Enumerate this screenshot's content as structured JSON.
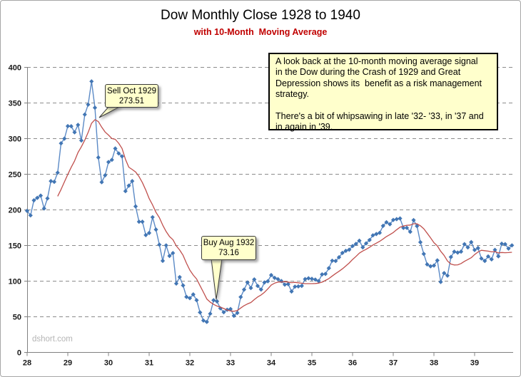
{
  "header": {
    "title": "Dow Monthly Close 1928 to 1940",
    "subtitle": "with 10-Month  Moving Average"
  },
  "watermark": "dshort.com",
  "annotations": {
    "sell_callout": {
      "line1": "Sell Oct 1929",
      "line2": "273.51",
      "anchor": "Oct 1929",
      "anchor_value": 273.51
    },
    "buy_callout": {
      "line1": "Buy Aug 1932",
      "line2": "73.16",
      "anchor": "Aug 1932",
      "anchor_value": 73.16
    },
    "note_box": {
      "text": "A look back at the 10-month moving average signal\nin the Dow during the Crash of 1929 and Great\nDepression shows its  benefit as a risk management\nstrategy.\n\nThere's a bit of whipsawing in late '32- '33, in '37 and\nin again in '39."
    }
  },
  "chart_data": {
    "type": "line",
    "title": "Dow Monthly Close 1928 to 1940",
    "subtitle": "with 10-Month Moving Average",
    "x_unit": "month",
    "x_start": "Jan 1928",
    "x_end": "Dec 1939",
    "x_tick_labels": [
      "28",
      "29",
      "30",
      "31",
      "32",
      "33",
      "34",
      "35",
      "36",
      "37",
      "38",
      "39"
    ],
    "y_ticks": [
      0,
      50,
      100,
      150,
      200,
      250,
      300,
      350,
      400
    ],
    "ylim": [
      0,
      400
    ],
    "grid": "horizontal-dashed",
    "legend": "none",
    "colors": {
      "close_line": "#5b8ac6",
      "close_marker": "#4276b4",
      "ma_line": "#c0504d",
      "subtitle_red": "#c00000",
      "callout_fill": "#ffffcc",
      "grid_gray": "#8c8c8c"
    },
    "series": [
      {
        "name": "Dow Monthly Close",
        "style": "line-with-diamond-markers",
        "color": "#4f81bd",
        "values": [
          198.6,
          192.33,
          213.35,
          216.93,
          219.99,
          201.96,
          216.13,
          240.41,
          239.43,
          252.16,
          293.38,
          300.0,
          317.51,
          317.41,
          308.85,
          319.29,
          297.41,
          333.79,
          347.7,
          380.33,
          343.45,
          273.51,
          238.95,
          248.48,
          267.14,
          270.23,
          286.1,
          279.23,
          275.07,
          226.34,
          233.99,
          240.42,
          204.9,
          183.35,
          183.39,
          164.58,
          167.55,
          189.66,
          172.36,
          151.19,
          128.46,
          150.18,
          135.39,
          139.41,
          96.61,
          105.66,
          93.99,
          77.9,
          76.11,
          81.44,
          73.28,
          56.11,
          44.74,
          42.84,
          54.26,
          73.16,
          71.56,
          61.9,
          56.35,
          59.93,
          60.9,
          51.39,
          55.4,
          77.66,
          88.11,
          98.14,
          90.39,
          102.41,
          93.26,
          88.16,
          98.14,
          99.9,
          108.54,
          104.62,
          102.8,
          100.08,
          95.15,
          95.94,
          85.51,
          92.26,
          92.64,
          93.36,
          102.94,
          104.04,
          103.27,
          102.16,
          100.11,
          109.54,
          110.1,
          118.21,
          128.7,
          128.29,
          133.49,
          139.59,
          142.51,
          144.13,
          149.22,
          152.31,
          156.84,
          147.44,
          152.96,
          157.68,
          164.26,
          166.11,
          167.77,
          177.56,
          182.62,
          179.9,
          185.86,
          187.01,
          187.99,
          174.66,
          174.76,
          169.25,
          185.61,
          177.21,
          154.57,
          138.17,
          123.48,
          120.85,
          121.87,
          129.09,
          98.95,
          111.28,
          107.74,
          133.88,
          141.35,
          140.08,
          141.45,
          151.88,
          147.31,
          154.76,
          143.72,
          146.45,
          131.84,
          128.45,
          134.66,
          130.57,
          143.87,
          134.85,
          152.54,
          151.88,
          145.66,
          150.24
        ]
      },
      {
        "name": "10-Month Moving Average",
        "style": "line",
        "color": "#c0504d",
        "derivation": "trailing 10-month mean of monthly closes, plotted from Oct 1928"
      }
    ]
  }
}
